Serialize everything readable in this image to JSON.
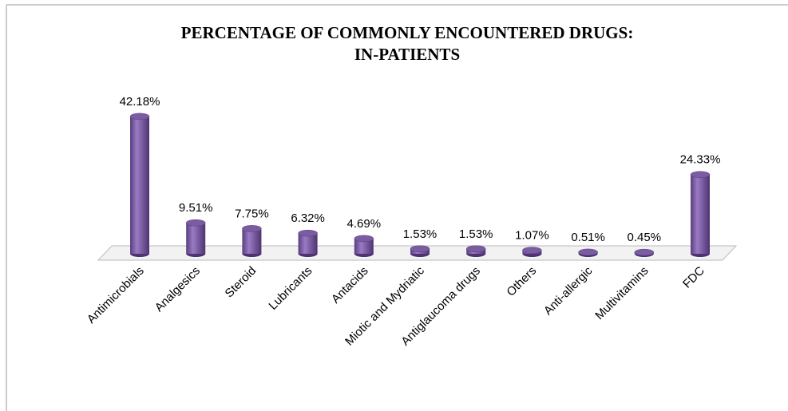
{
  "chart_data": {
    "type": "bar3d",
    "title": "PERCENTAGE OF COMMONLY ENCOUNTERED DRUGS:\nIN-PATIENTS",
    "categories": [
      "Antimicrobials",
      "Analgesics",
      "Steroid",
      "Lubricants",
      "Antacids",
      "Miotic and Mydriatic",
      "Antiglaucoma drugs",
      "Others",
      "Anti-allergic",
      "Multivitamins",
      "FDC"
    ],
    "values": [
      42.18,
      9.51,
      7.75,
      6.32,
      4.69,
      1.53,
      1.53,
      1.07,
      0.51,
      0.45,
      24.33
    ],
    "value_labels": [
      "42.18%",
      "9.51%",
      "7.75%",
      "6.32%",
      "4.69%",
      "1.53%",
      "1.53%",
      "1.07%",
      "0.51%",
      "0.45%",
      "24.33%"
    ],
    "color": "#7b5ca3"
  }
}
